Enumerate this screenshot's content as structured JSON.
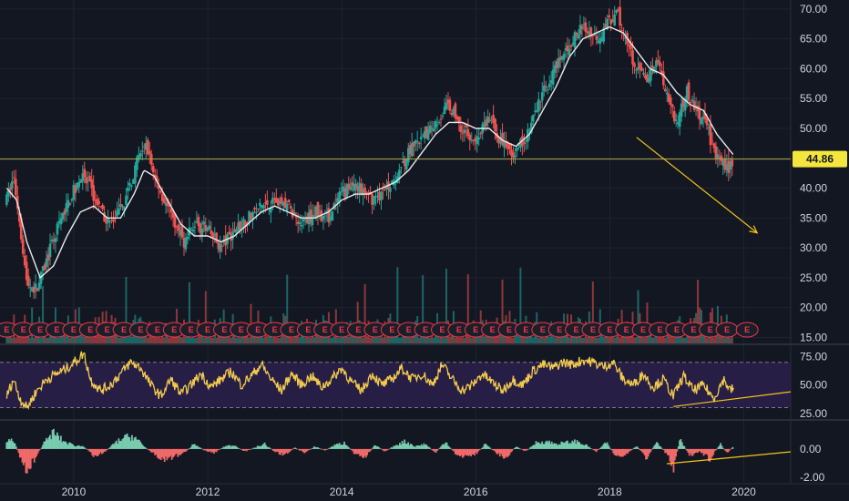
{
  "chart_data": {
    "type": "candlestick",
    "x_axis": {
      "ticks": [
        "2010",
        "2012",
        "2014",
        "2016",
        "2018",
        "2020"
      ],
      "range": [
        2008.9,
        2020.7
      ]
    },
    "main": {
      "y_ticks": [
        "70.00",
        "65.00",
        "60.00",
        "55.00",
        "50.00",
        "45.00",
        "40.00",
        "35.00",
        "30.00",
        "25.00",
        "20.00",
        "15.00"
      ],
      "ylim": [
        14.0,
        71.5
      ],
      "last_price": "44.86",
      "horizontal_line": 44.86,
      "price_path": [
        [
          2009.0,
          38
        ],
        [
          2009.1,
          42
        ],
        [
          2009.2,
          34
        ],
        [
          2009.3,
          24
        ],
        [
          2009.45,
          23
        ],
        [
          2009.6,
          28
        ],
        [
          2009.75,
          33
        ],
        [
          2009.9,
          37
        ],
        [
          2010.1,
          42
        ],
        [
          2010.25,
          40
        ],
        [
          2010.4,
          36
        ],
        [
          2010.55,
          34
        ],
        [
          2010.7,
          36
        ],
        [
          2010.85,
          41
        ],
        [
          2011.0,
          46
        ],
        [
          2011.1,
          47
        ],
        [
          2011.2,
          42
        ],
        [
          2011.35,
          38
        ],
        [
          2011.5,
          34
        ],
        [
          2011.65,
          31
        ],
        [
          2011.8,
          34
        ],
        [
          2012.0,
          33
        ],
        [
          2012.2,
          30
        ],
        [
          2012.4,
          33
        ],
        [
          2012.6,
          35
        ],
        [
          2012.8,
          37
        ],
        [
          2013.0,
          38
        ],
        [
          2013.2,
          37
        ],
        [
          2013.4,
          34
        ],
        [
          2013.6,
          36
        ],
        [
          2013.8,
          35
        ],
        [
          2014.0,
          39
        ],
        [
          2014.2,
          41
        ],
        [
          2014.4,
          38
        ],
        [
          2014.6,
          39
        ],
        [
          2014.8,
          42
        ],
        [
          2015.0,
          46
        ],
        [
          2015.2,
          48
        ],
        [
          2015.4,
          51
        ],
        [
          2015.6,
          54
        ],
        [
          2015.8,
          50
        ],
        [
          2016.0,
          48
        ],
        [
          2016.2,
          52
        ],
        [
          2016.4,
          47
        ],
        [
          2016.6,
          46
        ],
        [
          2016.8,
          50
        ],
        [
          2017.0,
          56
        ],
        [
          2017.2,
          60
        ],
        [
          2017.4,
          64
        ],
        [
          2017.6,
          67
        ],
        [
          2017.8,
          65
        ],
        [
          2018.0,
          68
        ],
        [
          2018.1,
          70
        ],
        [
          2018.25,
          64
        ],
        [
          2018.4,
          60
        ],
        [
          2018.55,
          58
        ],
        [
          2018.7,
          62
        ],
        [
          2018.85,
          56
        ],
        [
          2019.0,
          51
        ],
        [
          2019.15,
          56
        ],
        [
          2019.3,
          53
        ],
        [
          2019.45,
          50
        ],
        [
          2019.6,
          45
        ],
        [
          2019.75,
          43
        ],
        [
          2019.85,
          44.86
        ]
      ],
      "ma_path": [
        [
          2009.0,
          40
        ],
        [
          2009.15,
          38
        ],
        [
          2009.3,
          31
        ],
        [
          2009.5,
          25
        ],
        [
          2009.7,
          27
        ],
        [
          2009.9,
          32
        ],
        [
          2010.1,
          36
        ],
        [
          2010.3,
          37
        ],
        [
          2010.5,
          35
        ],
        [
          2010.7,
          35
        ],
        [
          2010.9,
          39
        ],
        [
          2011.05,
          43
        ],
        [
          2011.2,
          42
        ],
        [
          2011.4,
          38
        ],
        [
          2011.6,
          34
        ],
        [
          2011.8,
          32
        ],
        [
          2012.0,
          32
        ],
        [
          2012.2,
          31
        ],
        [
          2012.4,
          32
        ],
        [
          2012.6,
          34
        ],
        [
          2012.8,
          36
        ],
        [
          2013.0,
          37
        ],
        [
          2013.2,
          36
        ],
        [
          2013.4,
          35
        ],
        [
          2013.6,
          35
        ],
        [
          2013.8,
          36
        ],
        [
          2014.0,
          38
        ],
        [
          2014.2,
          39
        ],
        [
          2014.4,
          39
        ],
        [
          2014.6,
          40
        ],
        [
          2014.8,
          41
        ],
        [
          2015.0,
          43
        ],
        [
          2015.2,
          46
        ],
        [
          2015.4,
          49
        ],
        [
          2015.6,
          51
        ],
        [
          2015.8,
          51
        ],
        [
          2016.0,
          50
        ],
        [
          2016.2,
          50
        ],
        [
          2016.4,
          48
        ],
        [
          2016.6,
          47
        ],
        [
          2016.8,
          49
        ],
        [
          2017.0,
          53
        ],
        [
          2017.2,
          57
        ],
        [
          2017.4,
          62
        ],
        [
          2017.6,
          65
        ],
        [
          2017.8,
          66
        ],
        [
          2018.0,
          67
        ],
        [
          2018.2,
          66
        ],
        [
          2018.4,
          63
        ],
        [
          2018.6,
          60
        ],
        [
          2018.8,
          59
        ],
        [
          2019.0,
          56
        ],
        [
          2019.2,
          54
        ],
        [
          2019.4,
          53
        ],
        [
          2019.6,
          49
        ],
        [
          2019.85,
          45.5
        ]
      ],
      "annotation_arrow": {
        "from": [
          2018.4,
          48.5
        ],
        "to": [
          2020.2,
          32.5
        ]
      },
      "earnings_marker": "E"
    },
    "rsi": {
      "y_ticks": [
        "75.00",
        "50.00",
        "25.00"
      ],
      "ylim": [
        20,
        85
      ],
      "upper_band": 70,
      "lower_band": 30,
      "path": [
        [
          2009.0,
          40
        ],
        [
          2009.1,
          55
        ],
        [
          2009.2,
          38
        ],
        [
          2009.3,
          30
        ],
        [
          2009.45,
          45
        ],
        [
          2009.6,
          55
        ],
        [
          2009.75,
          60
        ],
        [
          2009.9,
          65
        ],
        [
          2010.05,
          72
        ],
        [
          2010.15,
          78
        ],
        [
          2010.25,
          55
        ],
        [
          2010.4,
          45
        ],
        [
          2010.55,
          50
        ],
        [
          2010.7,
          60
        ],
        [
          2010.85,
          70
        ],
        [
          2011.0,
          65
        ],
        [
          2011.15,
          50
        ],
        [
          2011.3,
          40
        ],
        [
          2011.45,
          55
        ],
        [
          2011.6,
          42
        ],
        [
          2011.75,
          50
        ],
        [
          2011.9,
          60
        ],
        [
          2012.05,
          48
        ],
        [
          2012.2,
          55
        ],
        [
          2012.35,
          62
        ],
        [
          2012.5,
          50
        ],
        [
          2012.65,
          58
        ],
        [
          2012.8,
          68
        ],
        [
          2012.95,
          55
        ],
        [
          2013.1,
          45
        ],
        [
          2013.25,
          60
        ],
        [
          2013.4,
          50
        ],
        [
          2013.55,
          58
        ],
        [
          2013.7,
          48
        ],
        [
          2013.85,
          55
        ],
        [
          2014.0,
          65
        ],
        [
          2014.15,
          52
        ],
        [
          2014.3,
          45
        ],
        [
          2014.45,
          60
        ],
        [
          2014.6,
          50
        ],
        [
          2014.75,
          55
        ],
        [
          2014.9,
          65
        ],
        [
          2015.05,
          55
        ],
        [
          2015.2,
          60
        ],
        [
          2015.35,
          50
        ],
        [
          2015.5,
          68
        ],
        [
          2015.65,
          55
        ],
        [
          2015.8,
          45
        ],
        [
          2015.95,
          50
        ],
        [
          2016.1,
          60
        ],
        [
          2016.25,
          52
        ],
        [
          2016.4,
          45
        ],
        [
          2016.55,
          55
        ],
        [
          2016.7,
          50
        ],
        [
          2016.85,
          62
        ],
        [
          2017.0,
          68
        ],
        [
          2017.15,
          65
        ],
        [
          2017.3,
          70
        ],
        [
          2017.45,
          68
        ],
        [
          2017.6,
          72
        ],
        [
          2017.75,
          70
        ],
        [
          2017.9,
          66
        ],
        [
          2018.05,
          70
        ],
        [
          2018.2,
          55
        ],
        [
          2018.35,
          50
        ],
        [
          2018.5,
          60
        ],
        [
          2018.65,
          48
        ],
        [
          2018.8,
          55
        ],
        [
          2018.95,
          40
        ],
        [
          2019.1,
          58
        ],
        [
          2019.25,
          45
        ],
        [
          2019.4,
          50
        ],
        [
          2019.55,
          38
        ],
        [
          2019.7,
          55
        ],
        [
          2019.8,
          45
        ],
        [
          2019.85,
          48
        ]
      ],
      "divergence_line": {
        "from": [
          2018.95,
          31
        ],
        "to": [
          2020.7,
          44
        ]
      }
    },
    "histogram": {
      "y_ticks": [
        "0.00",
        "-2.00"
      ],
      "ylim": [
        -2.4,
        2.0
      ],
      "bars_hint": [
        [
          2009.0,
          0.5
        ],
        [
          2009.1,
          0.8
        ],
        [
          2009.2,
          -0.6
        ],
        [
          2009.3,
          -1.6
        ],
        [
          2009.4,
          -1.0
        ],
        [
          2009.55,
          0.4
        ],
        [
          2009.7,
          1.3
        ],
        [
          2009.85,
          0.6
        ],
        [
          2010.0,
          0.3
        ],
        [
          2010.15,
          0.2
        ],
        [
          2010.3,
          -0.5
        ],
        [
          2010.45,
          -0.3
        ],
        [
          2010.6,
          0.4
        ],
        [
          2010.75,
          0.9
        ],
        [
          2010.9,
          1.0
        ],
        [
          2011.05,
          0.2
        ],
        [
          2011.2,
          -0.4
        ],
        [
          2011.35,
          -0.8
        ],
        [
          2011.5,
          -0.6
        ],
        [
          2011.65,
          -0.3
        ],
        [
          2011.8,
          0.4
        ],
        [
          2011.95,
          -0.1
        ],
        [
          2012.1,
          -0.3
        ],
        [
          2012.25,
          0.2
        ],
        [
          2012.4,
          0.3
        ],
        [
          2012.55,
          -0.2
        ],
        [
          2012.7,
          0.1
        ],
        [
          2012.85,
          0.4
        ],
        [
          2013.0,
          -0.2
        ],
        [
          2013.15,
          -0.5
        ],
        [
          2013.3,
          0.1
        ],
        [
          2013.45,
          -0.3
        ],
        [
          2013.6,
          0.2
        ],
        [
          2013.75,
          -0.1
        ],
        [
          2013.9,
          0.3
        ],
        [
          2014.05,
          0.5
        ],
        [
          2014.2,
          -0.4
        ],
        [
          2014.35,
          -0.6
        ],
        [
          2014.5,
          0.3
        ],
        [
          2014.65,
          -0.2
        ],
        [
          2014.8,
          0.3
        ],
        [
          2014.95,
          0.6
        ],
        [
          2015.1,
          0.2
        ],
        [
          2015.25,
          0.4
        ],
        [
          2015.4,
          -0.3
        ],
        [
          2015.55,
          0.6
        ],
        [
          2015.7,
          -0.4
        ],
        [
          2015.85,
          -0.6
        ],
        [
          2016.0,
          -0.4
        ],
        [
          2016.15,
          0.4
        ],
        [
          2016.3,
          -0.3
        ],
        [
          2016.45,
          -0.7
        ],
        [
          2016.6,
          0.2
        ],
        [
          2016.75,
          -0.2
        ],
        [
          2016.9,
          0.5
        ],
        [
          2017.05,
          0.6
        ],
        [
          2017.2,
          0.4
        ],
        [
          2017.35,
          0.5
        ],
        [
          2017.5,
          0.6
        ],
        [
          2017.65,
          0.3
        ],
        [
          2017.8,
          -0.2
        ],
        [
          2017.95,
          0.5
        ],
        [
          2018.1,
          -0.6
        ],
        [
          2018.25,
          -0.5
        ],
        [
          2018.4,
          0.3
        ],
        [
          2018.55,
          -0.8
        ],
        [
          2018.7,
          0.6
        ],
        [
          2018.85,
          -0.4
        ],
        [
          2018.95,
          -1.5
        ],
        [
          2019.05,
          0.7
        ],
        [
          2019.2,
          -0.5
        ],
        [
          2019.35,
          -0.2
        ],
        [
          2019.5,
          -0.8
        ],
        [
          2019.65,
          0.4
        ],
        [
          2019.75,
          -0.3
        ],
        [
          2019.85,
          0.2
        ]
      ],
      "divergence_line": {
        "from": [
          2018.85,
          -1.05
        ],
        "to": [
          2020.7,
          -0.2
        ]
      }
    },
    "colors": {
      "background": "#131722",
      "up": "#26a69a",
      "down": "#ef5350",
      "ma": "#e9e9e9",
      "hline": "#a8a84a",
      "price_tag": "#f5e63d",
      "annotation": "#f5c518",
      "rsi_line": "#f2cb4e",
      "rsi_band_fill": "#2a1f4a",
      "earnings": "#f23645",
      "grid": "#1f2330",
      "separator": "#2a2e39"
    }
  }
}
